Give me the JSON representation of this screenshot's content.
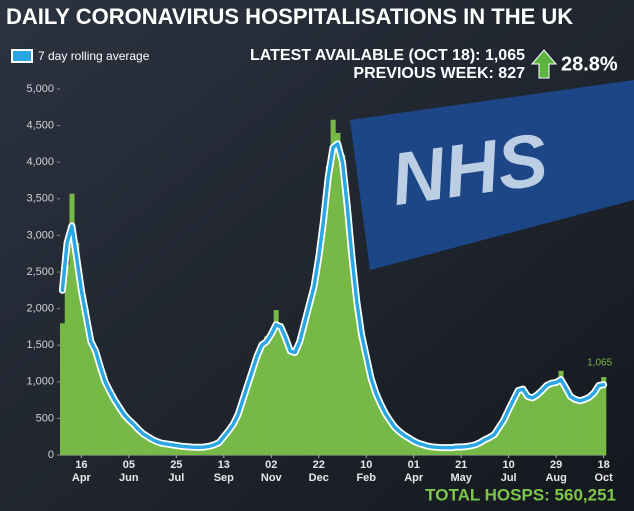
{
  "chart_data": {
    "type": "bar",
    "title": "DAILY CORONAVIRUS HOSPITALISATIONS  IN THE UK",
    "annotations": {
      "latest": "LATEST AVAILABLE (OCT 18): 1,065",
      "previous": "PREVIOUS WEEK: 827",
      "change": "28.8%",
      "total": "TOTAL HOSPS: 560,251"
    },
    "categories": [
      null,
      null,
      null,
      null,
      [
        "16",
        "Apr"
      ],
      null,
      null,
      null,
      null,
      null,
      null,
      null,
      null,
      null,
      [
        "05",
        "Jun"
      ],
      null,
      null,
      null,
      null,
      null,
      null,
      null,
      null,
      null,
      [
        "25",
        "Jul"
      ],
      null,
      null,
      null,
      null,
      null,
      null,
      null,
      null,
      null,
      [
        "13",
        "Sep"
      ],
      null,
      null,
      null,
      null,
      null,
      null,
      null,
      null,
      null,
      [
        "02",
        "Nov"
      ],
      null,
      null,
      null,
      null,
      null,
      null,
      null,
      null,
      null,
      [
        "22",
        "Dec"
      ],
      null,
      null,
      null,
      null,
      null,
      null,
      null,
      null,
      null,
      [
        "10",
        "Feb"
      ],
      null,
      null,
      null,
      null,
      null,
      null,
      null,
      null,
      null,
      [
        "01",
        "Apr"
      ],
      null,
      null,
      null,
      null,
      null,
      null,
      null,
      null,
      null,
      [
        "21",
        "May"
      ],
      null,
      null,
      null,
      null,
      null,
      null,
      null,
      null,
      null,
      [
        "10",
        "Jul"
      ],
      null,
      null,
      null,
      null,
      null,
      null,
      null,
      null,
      null,
      [
        "29",
        "Aug"
      ],
      null,
      null,
      null,
      null,
      null,
      null,
      null,
      null,
      null,
      [
        "18",
        "Oct"
      ]
    ],
    "values": [
      1800,
      2600,
      3570,
      2900,
      2300,
      2000,
      1600,
      1450,
      1250,
      1050,
      900,
      760,
      680,
      560,
      500,
      430,
      360,
      300,
      260,
      220,
      190,
      165,
      155,
      145,
      135,
      125,
      118,
      112,
      108,
      106,
      112,
      125,
      145,
      180,
      260,
      350,
      440,
      580,
      790,
      1000,
      1200,
      1400,
      1550,
      1620,
      1700,
      1980,
      1800,
      1650,
      1450,
      1430,
      1600,
      1850,
      2100,
      2380,
      2800,
      3350,
      3950,
      4580,
      4400,
      4100,
      3500,
      2800,
      2150,
      1700,
      1400,
      1100,
      880,
      720,
      590,
      480,
      390,
      330,
      280,
      240,
      195,
      165,
      145,
      125,
      112,
      108,
      102,
      100,
      102,
      112,
      114,
      118,
      128,
      145,
      175,
      215,
      250,
      290,
      400,
      500,
      650,
      780,
      920,
      940,
      820,
      800,
      850,
      900,
      980,
      1000,
      1020,
      1150,
      950,
      820,
      780,
      760,
      780,
      810,
      880,
      980,
      1065
    ],
    "value_labels": [
      null,
      null,
      null,
      null,
      null,
      null,
      null,
      null,
      null,
      null,
      null,
      null,
      null,
      null,
      null,
      null,
      null,
      null,
      null,
      null,
      null,
      null,
      null,
      null,
      null,
      null,
      null,
      null,
      null,
      null,
      null,
      null,
      null,
      null,
      null,
      null,
      null,
      null,
      null,
      null,
      null,
      null,
      null,
      null,
      null,
      null,
      null,
      null,
      null,
      null,
      null,
      null,
      null,
      null,
      null,
      null,
      null,
      null,
      null,
      null,
      null,
      null,
      null,
      null,
      null,
      null,
      null,
      null,
      null,
      null,
      null,
      null,
      null,
      null,
      null,
      null,
      null,
      null,
      null,
      null,
      null,
      null,
      null,
      null,
      null,
      null,
      null,
      null,
      null,
      null,
      null,
      null,
      null,
      null,
      null,
      null,
      null,
      null,
      null,
      null,
      null,
      null,
      null,
      null,
      null,
      null,
      null,
      null,
      null,
      null,
      null,
      null,
      null,
      null,
      "1,065"
    ],
    "color": "#76b947",
    "series": [
      {
        "name": "7 day rolling average",
        "color": "#2aa6e2",
        "values": [
          2250,
          2900,
          3130,
          2700,
          2250,
          1900,
          1550,
          1420,
          1200,
          1000,
          870,
          750,
          650,
          550,
          480,
          420,
          350,
          290,
          250,
          210,
          180,
          160,
          150,
          140,
          130,
          120,
          115,
          110,
          105,
          105,
          110,
          120,
          140,
          170,
          250,
          330,
          420,
          550,
          750,
          950,
          1150,
          1350,
          1500,
          1550,
          1650,
          1780,
          1750,
          1600,
          1420,
          1400,
          1550,
          1800,
          2050,
          2300,
          2700,
          3200,
          3800,
          4200,
          4250,
          4000,
          3400,
          2700,
          2100,
          1650,
          1350,
          1050,
          850,
          700,
          570,
          470,
          380,
          320,
          270,
          230,
          190,
          160,
          140,
          120,
          110,
          105,
          100,
          100,
          100,
          110,
          110,
          115,
          125,
          140,
          170,
          210,
          240,
          280,
          380,
          480,
          620,
          750,
          880,
          900,
          800,
          780,
          820,
          880,
          950,
          980,
          990,
          1030,
          920,
          800,
          760,
          740,
          760,
          790,
          850,
          950,
          960
        ]
      }
    ],
    "ylim": [
      0,
      5000
    ],
    "yticks": [
      0,
      500,
      {
        "value": 1000,
        "label": "1,000"
      },
      {
        "value": 1500,
        "label": "1,500"
      },
      {
        "value": 2000,
        "label": "2,000"
      },
      {
        "value": 2500,
        "label": "2,500"
      },
      {
        "value": 3000,
        "label": "3,000"
      },
      {
        "value": 3500,
        "label": "3,500"
      },
      {
        "value": 4000,
        "label": "4,000"
      },
      {
        "value": 4500,
        "label": "4,500"
      },
      {
        "value": 5000,
        "label": "5,000"
      }
    ],
    "grid": false
  }
}
